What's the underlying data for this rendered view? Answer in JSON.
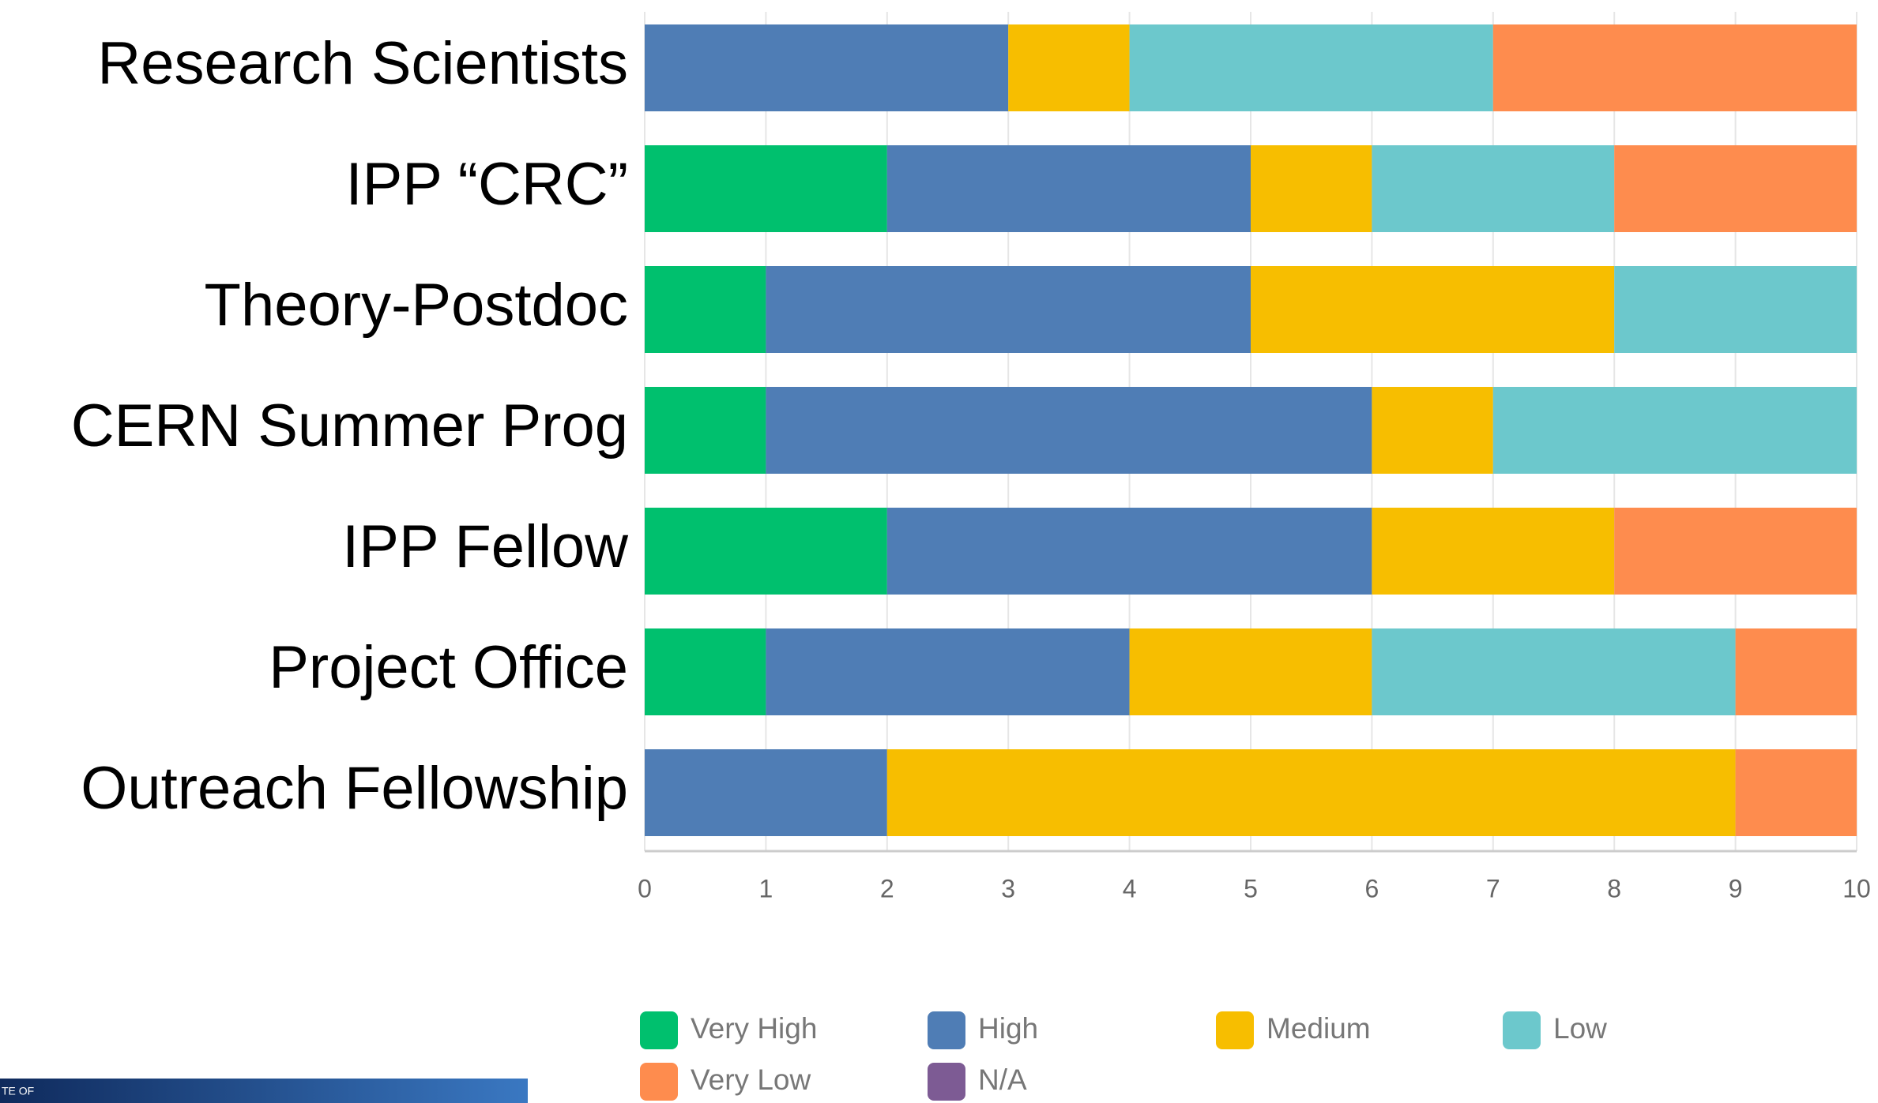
{
  "chart_data": {
    "type": "stacked_barh",
    "categories": [
      "Research Scientists",
      "IPP “CRC”",
      "Theory-Postdoc",
      "CERN Summer Prog",
      "IPP Fellow",
      "Project Office",
      "Outreach Fellowship"
    ],
    "series": [
      {
        "name": "Very High",
        "color": "#00c06e",
        "values": [
          0,
          2,
          1,
          1,
          2,
          1,
          0
        ]
      },
      {
        "name": "High",
        "color": "#4f7db5",
        "values": [
          3,
          3,
          4,
          5,
          4,
          3,
          2
        ]
      },
      {
        "name": "Medium",
        "color": "#f7be00",
        "values": [
          1,
          1,
          3,
          1,
          2,
          2,
          7
        ]
      },
      {
        "name": "Low",
        "color": "#6cc8cc",
        "values": [
          3,
          2,
          2,
          3,
          0,
          3,
          0
        ]
      },
      {
        "name": "Very Low",
        "color": "#fe8c4e",
        "values": [
          3,
          2,
          0,
          0,
          2,
          1,
          1
        ]
      },
      {
        "name": "N/A",
        "color": "#7d5b94",
        "values": [
          0,
          0,
          0,
          0,
          0,
          0,
          0
        ]
      }
    ],
    "xlim": [
      0,
      10
    ],
    "xticks": [
      0,
      1,
      2,
      3,
      4,
      5,
      6,
      7,
      8,
      9,
      10
    ],
    "grid": true
  },
  "footer_text": "TE OF"
}
